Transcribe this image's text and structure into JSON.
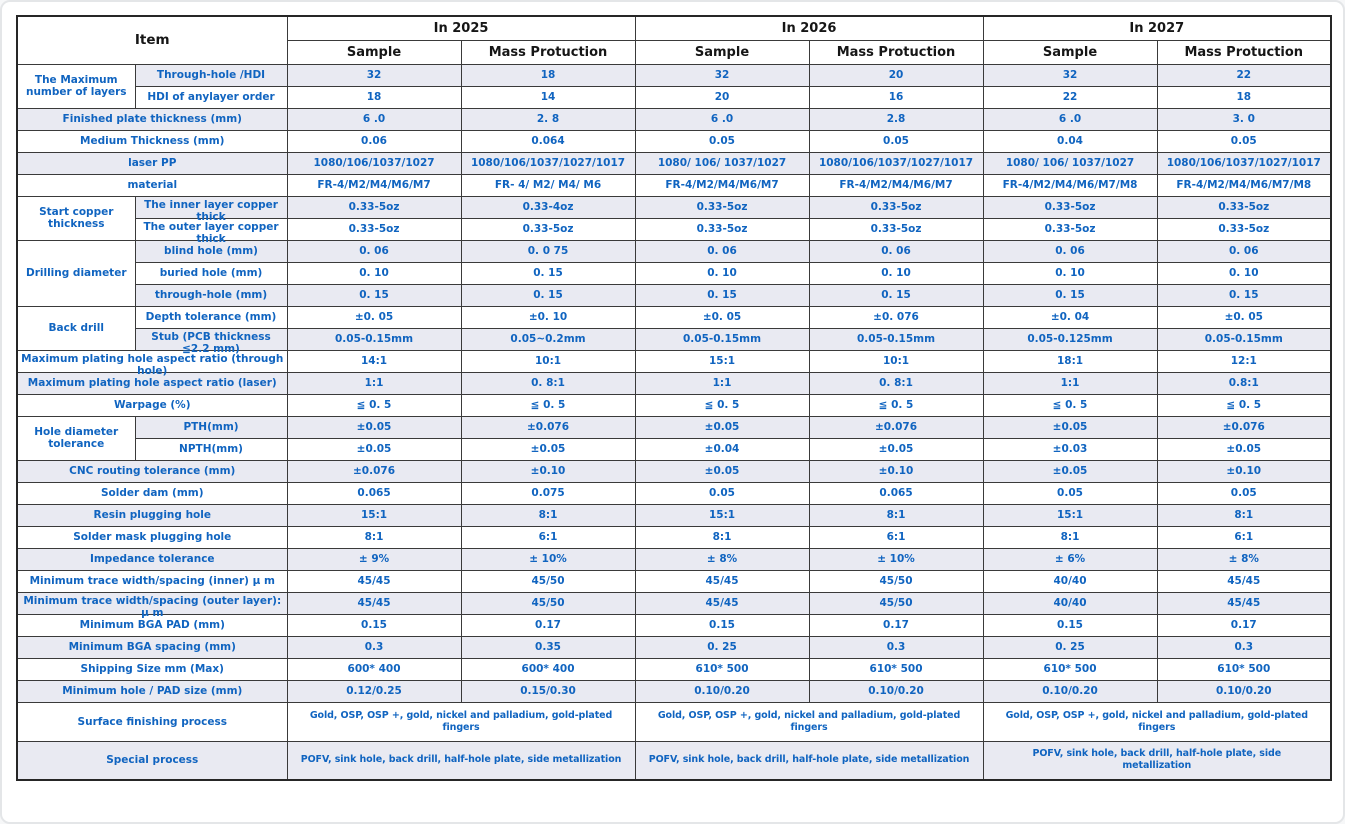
{
  "colors": {
    "accent_blue": "#1064c0",
    "header_text": "#161616",
    "row_stripe": "#e9eaf2",
    "grid_border": "#3a3a3a"
  },
  "table": {
    "item_header": "Item",
    "years": [
      "In 2025",
      "In 2026",
      "In 2027"
    ],
    "sub_headers": [
      "Sample",
      "Mass Protuction"
    ],
    "sections": [
      {
        "group": "The Maximum number of layers",
        "items": [
          {
            "label": "Through-hole /HDI",
            "values": [
              "32",
              "18",
              "32",
              "20",
              "32",
              "22"
            ]
          },
          {
            "label": "HDI of  anylayer order",
            "values": [
              "18",
              "14",
              "20",
              "16",
              "22",
              "18"
            ]
          }
        ]
      },
      {
        "label": "Finished plate thickness (mm)",
        "values": [
          "6 .0",
          "2. 8",
          "6 .0",
          "2.8",
          "6 .0",
          "3. 0"
        ]
      },
      {
        "label": "Medium Thickness (mm)",
        "values": [
          "0.06",
          "0.064",
          "0.05",
          "0.05",
          "0.04",
          "0.05"
        ]
      },
      {
        "label": "laser PP",
        "values": [
          "1080/106/1037/1027",
          "1080/106/1037/1027/1017",
          "1080/ 106/ 1037/1027",
          "1080/106/1037/1027/1017",
          "1080/ 106/ 1037/1027",
          "1080/106/1037/1027/1017"
        ]
      },
      {
        "label": "material",
        "values": [
          "FR-4/M2/M4/M6/M7",
          "FR- 4/ M2/ M4/ M6",
          "FR-4/M2/M4/M6/M7",
          "FR-4/M2/M4/M6/M7",
          "FR-4/M2/M4/M6/M7/M8",
          "FR-4/M2/M4/M6/M7/M8"
        ]
      },
      {
        "group": "Start copper thickness",
        "items": [
          {
            "label": "The inner layer  copper thick",
            "clip": true,
            "values": [
              "0.33-5oz",
              "0.33-4oz",
              "0.33-5oz",
              "0.33-5oz",
              "0.33-5oz",
              "0.33-5oz"
            ]
          },
          {
            "label": "The outer layer  copper thick",
            "clip": true,
            "values": [
              "0.33-5oz",
              "0.33-5oz",
              "0.33-5oz",
              "0.33-5oz",
              "0.33-5oz",
              "0.33-5oz"
            ]
          }
        ]
      },
      {
        "group": "Drilling  diameter",
        "items": [
          {
            "label": "blind hole (mm)",
            "values": [
              "0. 06",
              "0. 0 75",
              "0. 06",
              "0. 06",
              "0. 06",
              "0. 06"
            ]
          },
          {
            "label": "buried hole (mm)",
            "values": [
              "0. 10",
              "0. 15",
              "0. 10",
              "0. 10",
              "0. 10",
              "0. 10"
            ]
          },
          {
            "label": "through-hole (mm)",
            "values": [
              "0. 15",
              "0. 15",
              "0. 15",
              "0. 15",
              "0. 15",
              "0. 15"
            ]
          }
        ]
      },
      {
        "group": "Back drill",
        "items": [
          {
            "label": "Depth tolerance (mm)",
            "values": [
              "±0. 05",
              "±0. 10",
              "±0. 05",
              "±0. 076",
              "±0. 04",
              "±0. 05"
            ]
          },
          {
            "label": "Stub (PCB thickness ≦2.2 mm)",
            "clip": true,
            "values": [
              "0.05-0.15mm",
              "0.05~0.2mm",
              "0.05-0.15mm",
              "0.05-0.15mm",
              "0.05-0.125mm",
              "0.05-0.15mm"
            ]
          }
        ]
      },
      {
        "label": "Maximum plating hole aspect ratio (through hole)",
        "clip": true,
        "values": [
          "14:1",
          "10:1",
          "15:1",
          "10:1",
          "18:1",
          "12:1"
        ]
      },
      {
        "label": "Maximum plating hole aspect ratio (laser)",
        "values": [
          "1:1",
          "0. 8:1",
          "1:1",
          "0. 8:1",
          "1:1",
          "0.8:1"
        ]
      },
      {
        "label": "Warpage (%)",
        "values": [
          "≦ 0. 5",
          "≦ 0. 5",
          "≦ 0. 5",
          "≦ 0. 5",
          "≦ 0. 5",
          "≦ 0. 5"
        ]
      },
      {
        "group": "Hole diameter tolerance",
        "items": [
          {
            "label": "PTH(mm)",
            "values": [
              "±0.05",
              "±0.076",
              "±0.05",
              "±0.076",
              "±0.05",
              "±0.076"
            ]
          },
          {
            "label": "NPTH(mm)",
            "values": [
              "±0.05",
              "±0.05",
              "±0.04",
              "±0.05",
              "±0.03",
              "±0.05"
            ]
          }
        ]
      },
      {
        "label": "CNC routing tolerance (mm)",
        "values": [
          "±0.076",
          "±0.10",
          "±0.05",
          "±0.10",
          "±0.05",
          "±0.10"
        ]
      },
      {
        "label": "Solder dam (mm)",
        "values": [
          "0.065",
          "0.075",
          "0.05",
          "0.065",
          "0.05",
          "0.05"
        ]
      },
      {
        "label": "Resin plugging hole",
        "values": [
          "15:1",
          "8:1",
          "15:1",
          "8:1",
          "15:1",
          "8:1"
        ]
      },
      {
        "label": "Solder mask plugging hole",
        "values": [
          "8:1",
          "6:1",
          "8:1",
          "6:1",
          "8:1",
          "6:1"
        ]
      },
      {
        "label": "Impedance tolerance",
        "values": [
          "± 9%",
          "± 10%",
          "± 8%",
          "± 10%",
          "± 6%",
          "± 8%"
        ]
      },
      {
        "label": "Minimum  trace width/spacing (inner) μ m",
        "values": [
          "45/45",
          "45/50",
          "45/45",
          "45/50",
          "40/40",
          "45/45"
        ]
      },
      {
        "label": "Minimum trace width/spacing (outer layer): μ m",
        "clip": true,
        "values": [
          "45/45",
          "45/50",
          "45/45",
          "45/50",
          "40/40",
          "45/45"
        ]
      },
      {
        "label": "Minimum BGA PAD (mm)",
        "values": [
          "0.15",
          "0.17",
          "0.15",
          "0.17",
          "0.15",
          "0.17"
        ]
      },
      {
        "label": "Minimum BGA spacing (mm)",
        "values": [
          "0.3",
          "0.35",
          "0. 25",
          "0.3",
          "0. 25",
          "0.3"
        ]
      },
      {
        "label": "Shipping Size mm (Max)",
        "values": [
          "600* 400",
          "600* 400",
          "610* 500",
          "610* 500",
          "610* 500",
          "610* 500"
        ]
      },
      {
        "label": "Minimum hole / PAD size (mm)",
        "values": [
          "0.12/0.25",
          "0.15/0.30",
          "0.10/0.20",
          "0.10/0.20",
          "0.10/0.20",
          "0.10/0.20"
        ]
      },
      {
        "label": "Surface finishing process",
        "tall": true,
        "span_values": [
          "Gold, OSP, OSP +, gold, nickel and palladium, gold-plated fingers",
          "Gold, OSP, OSP +, gold, nickel and palladium, gold-plated fingers",
          "Gold, OSP, OSP +,  gold, nickel and palladium, gold-plated fingers"
        ]
      },
      {
        "label": "Special process",
        "tall": true,
        "span_values": [
          "POFV, sink hole, back drill, half-hole plate, side metallization",
          "POFV, sink hole, back drill, half-hole plate, side metallization",
          "POFV, sink hole, back drill, half-hole plate, side\nmetallization"
        ]
      }
    ]
  }
}
